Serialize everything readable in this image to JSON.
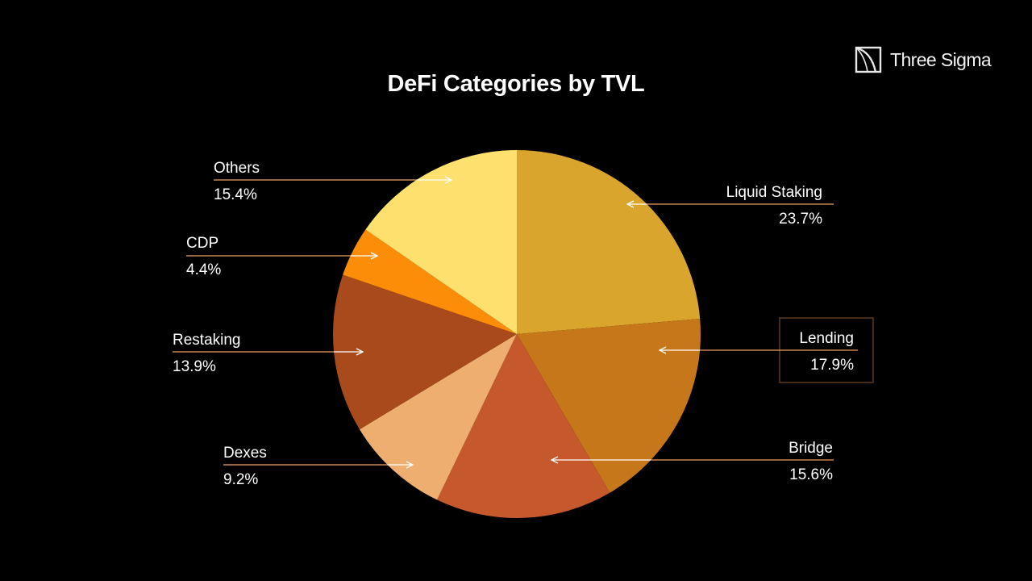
{
  "brand": {
    "name": "Three Sigma"
  },
  "chart_data": {
    "type": "pie",
    "title": "DeFi Categories by TVL",
    "start_angle_deg": 0,
    "direction": "clockwise",
    "slices": [
      {
        "label": "Liquid Staking",
        "value": 23.7,
        "display": "23.7%",
        "color": "#DAA52D"
      },
      {
        "label": "Lending",
        "value": 17.9,
        "display": "17.9%",
        "color": "#C5771A",
        "highlighted": true
      },
      {
        "label": "Bridge",
        "value": 15.6,
        "display": "15.6%",
        "color": "#C5592B"
      },
      {
        "label": "Dexes",
        "value": 9.2,
        "display": "9.2%",
        "color": "#EEAE6F"
      },
      {
        "label": "Restaking",
        "value": 13.9,
        "display": "13.9%",
        "color": "#A84A1B"
      },
      {
        "label": "CDP",
        "value": 4.4,
        "display": "4.4%",
        "color": "#FC8D08"
      },
      {
        "label": "Others",
        "value": 15.4,
        "display": "15.4%",
        "color": "#FEE06E"
      }
    ],
    "leader_line_color": "#F0A060",
    "highlight_box_color": "#5A3A1E"
  }
}
